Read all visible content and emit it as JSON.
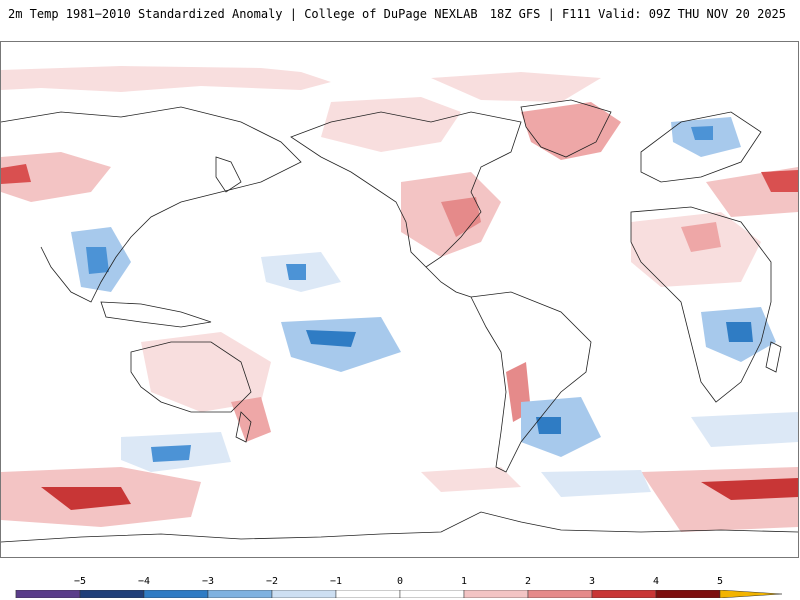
{
  "header": {
    "left_text": "2m Temp 1981−2010 Standardized Anomaly | College of DuPage NEXLAB",
    "right_text": "18Z GFS | F111 Valid: 09Z THU NOV 20 2025"
  },
  "map": {
    "projection": "global equirectangular, Pacific-centered",
    "variable": "2m temperature standardized anomaly"
  },
  "colorbar": {
    "tick_labels": [
      "−5",
      "−4",
      "−3",
      "−2",
      "−1",
      "0",
      "1",
      "2",
      "3",
      "4",
      "5"
    ],
    "colors": [
      "#5a3d8a",
      "#1f3f7a",
      "#2f7cc4",
      "#7fb2e0",
      "#cddff2",
      "#ffffff",
      "#ffffff",
      "#f3c4c4",
      "#e58a8a",
      "#c83636",
      "#7d0f0f",
      "#f2b400"
    ]
  },
  "colors": {
    "warm_light": "#f8dede",
    "warm_mid": "#eea7a7",
    "warm_strong": "#d95050",
    "warm_max": "#a01818",
    "cool_light": "#dce8f6",
    "cool_mid": "#a7c9ec",
    "cool_strong": "#4c93d6",
    "cool_max": "#1f4f9a",
    "coast": "#222222"
  }
}
